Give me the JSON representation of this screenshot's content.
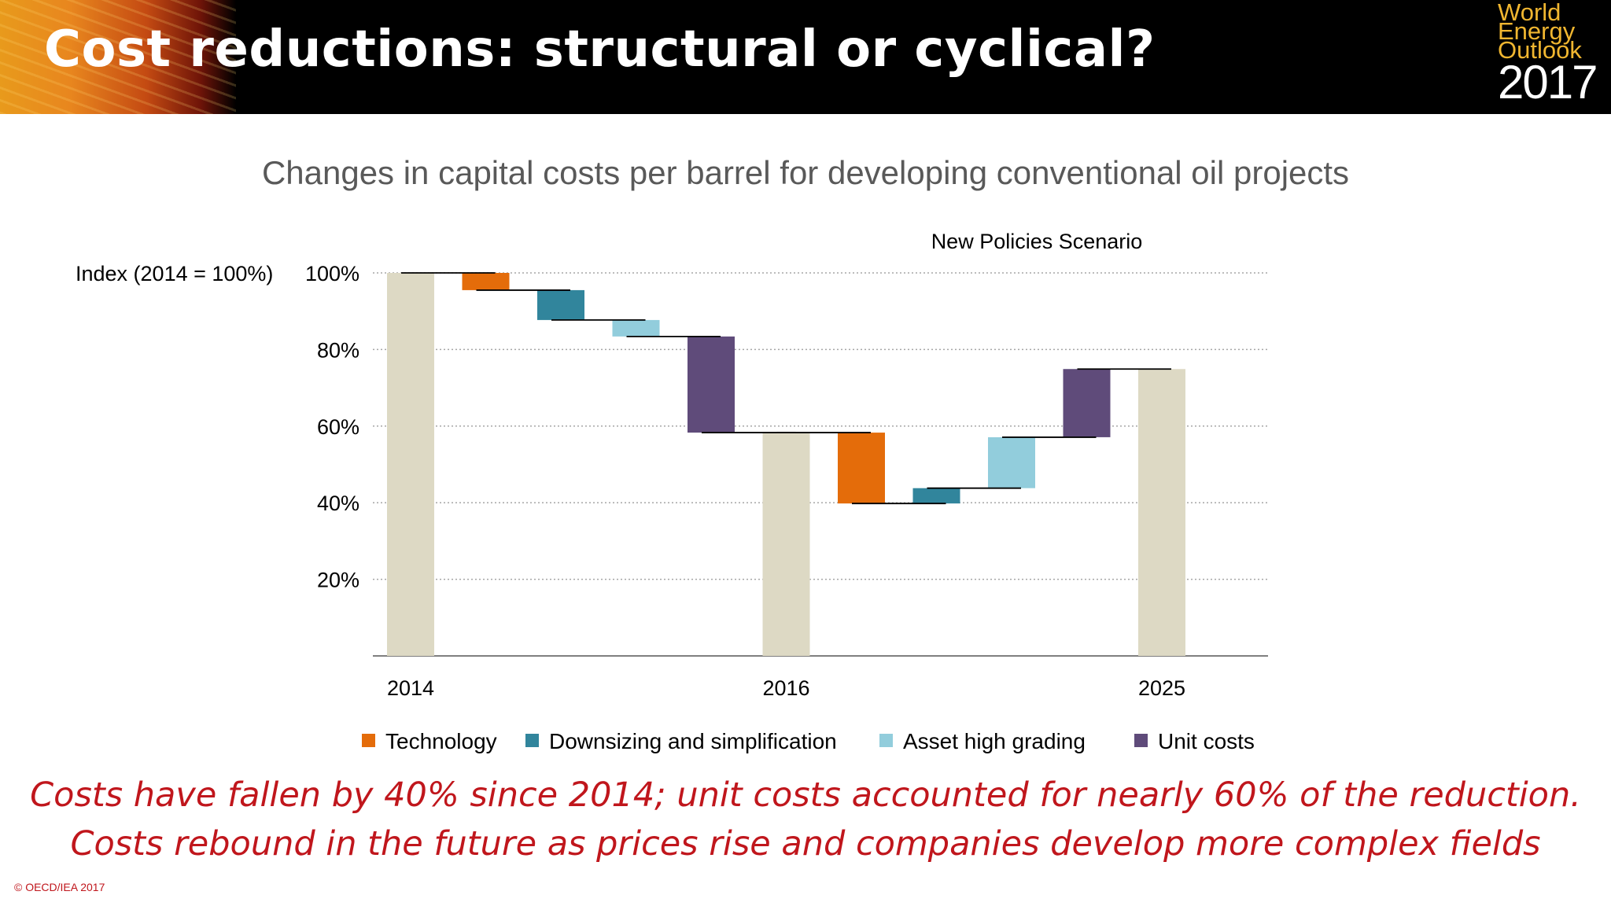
{
  "slide": {
    "title": "Cost reductions: structural or cyclical?",
    "logo": {
      "lines": [
        "World",
        "Energy",
        "Outlook"
      ],
      "year": "2017"
    },
    "chart_title": "Changes in capital costs per barrel for developing conventional oil projects",
    "takeaway_line1": "Costs have fallen by 40% since 2014; unit costs accounted for nearly 60% of the reduction.",
    "takeaway_line2": "Costs rebound in the future as prices rise and companies develop more complex fields",
    "copyright": "© OECD/IEA 2017"
  },
  "colors": {
    "total": "#ddd9c4",
    "Technology": "#e46c0a",
    "Downsizing and simplification": "#31859c",
    "Asset high grading": "#92cddc",
    "Unit costs": "#5f4b7a",
    "grid": "#a6a6a6",
    "axis": "#7f7f7f",
    "text": "#000000"
  },
  "chart_data": {
    "type": "bar",
    "subtype": "waterfall",
    "title": "Changes in capital costs per barrel for developing conventional oil projects",
    "annotation": "New Policies Scenario",
    "ylabel": "Index (2014 = 100%)",
    "ylim": [
      0,
      100
    ],
    "yticks": [
      20,
      40,
      60,
      80,
      100
    ],
    "ytick_labels": [
      "20%",
      "40%",
      "60%",
      "80%",
      "100%"
    ],
    "grid": true,
    "legend_position": "bottom",
    "legend": [
      "Technology",
      "Downsizing and simplification",
      "Asset high grading",
      "Unit costs"
    ],
    "x_labels": [
      {
        "label": "2014",
        "slot": 0
      },
      {
        "label": "2016",
        "slot": 5
      },
      {
        "label": "2025",
        "slot": 10
      }
    ],
    "bars": [
      {
        "kind": "total",
        "label": "2014",
        "from": 0,
        "to": 100
      },
      {
        "kind": "Technology",
        "from": 100,
        "to": 95.5
      },
      {
        "kind": "Downsizing and simplification",
        "from": 95.5,
        "to": 87.7
      },
      {
        "kind": "Asset high grading",
        "from": 87.7,
        "to": 83.4
      },
      {
        "kind": "Unit costs",
        "from": 83.4,
        "to": 58.3
      },
      {
        "kind": "total",
        "label": "2016",
        "from": 0,
        "to": 58.3
      },
      {
        "kind": "Technology",
        "from": 58.3,
        "to": 39.8
      },
      {
        "kind": "Downsizing and simplification",
        "from": 39.8,
        "to": 43.8
      },
      {
        "kind": "Asset high grading",
        "from": 43.8,
        "to": 57.1
      },
      {
        "kind": "Unit costs",
        "from": 57.1,
        "to": 74.9
      },
      {
        "kind": "total",
        "label": "2025",
        "from": 0,
        "to": 74.9
      }
    ]
  }
}
